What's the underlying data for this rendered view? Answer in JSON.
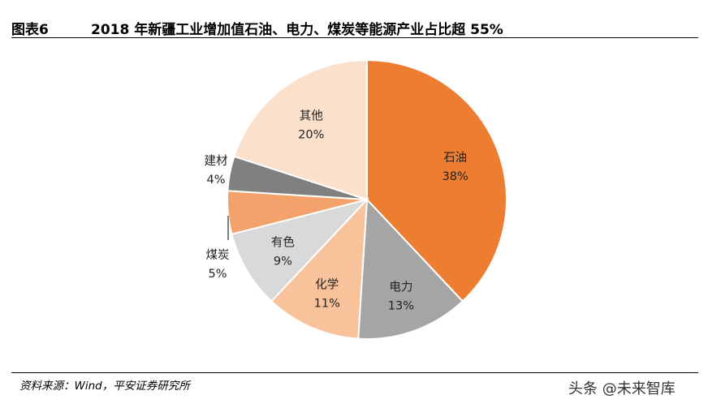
{
  "header": {
    "figure_label": "图表6",
    "title": "2018 年新疆工业增加值石油、电力、煤炭等能源产业占比超 55%"
  },
  "chart_data": {
    "type": "pie",
    "title": "2018 年新疆工业增加值石油、电力、煤炭等能源产业占比超 55%",
    "start_angle_deg": 0,
    "direction": "clockwise",
    "slices": [
      {
        "name": "石油",
        "value": 38,
        "label": "38%",
        "color": "#ED7D31"
      },
      {
        "name": "电力",
        "value": 13,
        "label": "13%",
        "color": "#A5A5A5"
      },
      {
        "name": "化学",
        "value": 11,
        "label": "11%",
        "color": "#F8C29B"
      },
      {
        "name": "有色",
        "value": 9,
        "label": "9%",
        "color": "#D9D9D9"
      },
      {
        "name": "煤炭",
        "value": 5,
        "label": "5%",
        "color": "#F4A26B"
      },
      {
        "name": "建材",
        "value": 4,
        "label": "4%",
        "color": "#808080"
      },
      {
        "name": "其他",
        "value": 20,
        "label": "20%",
        "color": "#FBE0CC"
      }
    ]
  },
  "footer": {
    "source": "资料来源：Wind，平安证券研究所",
    "watermark": "头条 @未来智库"
  }
}
